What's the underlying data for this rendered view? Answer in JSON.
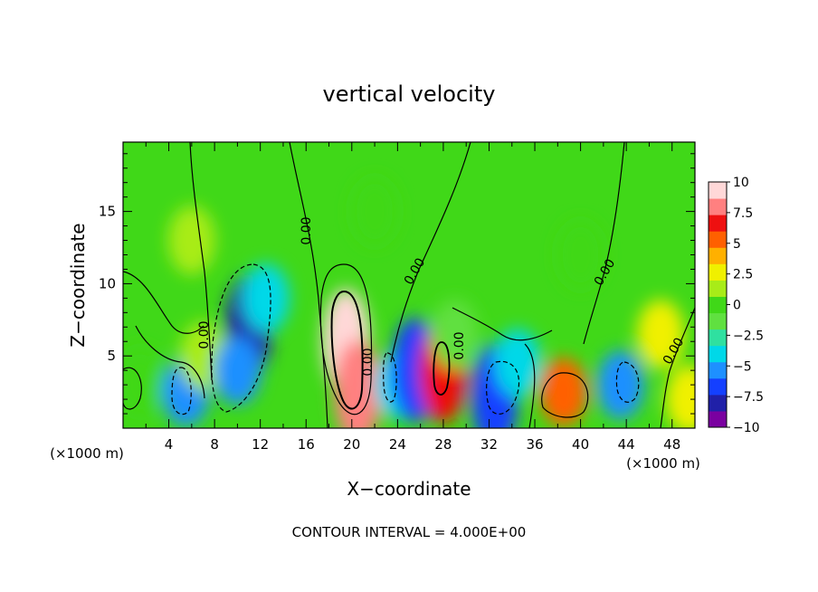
{
  "chart_data": {
    "type": "heatmap",
    "title": "vertical velocity",
    "xlabel": "X−coordinate",
    "ylabel": "Z−coordinate",
    "x_unit_left": "(×1000 m)",
    "x_unit_right": "(×1000 m)",
    "footer": "CONTOUR INTERVAL = 4.000E+00",
    "xlim": [
      0,
      50
    ],
    "ylim": [
      0,
      19.8
    ],
    "x_ticks": [
      4,
      8,
      12,
      16,
      20,
      24,
      28,
      32,
      36,
      40,
      44,
      48
    ],
    "y_ticks": [
      5,
      10,
      15
    ],
    "colorbar": {
      "range": [
        -10,
        10
      ],
      "ticks": [
        10,
        7.5,
        5,
        2.5,
        0,
        -2.5,
        -5,
        -7.5,
        -10
      ],
      "tick_labels": [
        "10",
        "7.5",
        "5",
        "2.5",
        "0",
        "−2.5",
        "−5",
        "−7.5",
        "−10"
      ],
      "colors": [
        "#7a00a0",
        "#2020a8",
        "#1440ff",
        "#1e90ff",
        "#00d8e8",
        "#2fe0a0",
        "#60e040",
        "#40d818",
        "#a8ec18",
        "#f0f000",
        "#ffb000",
        "#ff6000",
        "#ee1010",
        "#ff8080",
        "#ffd8d8"
      ]
    },
    "contour_labels": [
      "0.00",
      "0.00",
      "0.00",
      "0.00",
      "0.00",
      "0.00",
      "0.00"
    ],
    "cells": [
      {
        "x": 1.5,
        "z": 3.2,
        "w": 0
      },
      {
        "x": 5.5,
        "z": 2.5,
        "w": -5.5
      },
      {
        "x": 7.0,
        "z": 5.0,
        "w": 1.5
      },
      {
        "x": 11.0,
        "z": 7.0,
        "w": -7.5
      },
      {
        "x": 10.0,
        "z": 4.0,
        "w": -6.0
      },
      {
        "x": 12.5,
        "z": 9.0,
        "w": -4.0
      },
      {
        "x": 19.5,
        "z": 6.0,
        "w": 10.0
      },
      {
        "x": 20.5,
        "z": 2.5,
        "w": 8.0
      },
      {
        "x": 24.0,
        "z": 3.0,
        "w": -4.5
      },
      {
        "x": 25.5,
        "z": 4.0,
        "w": -6.5
      },
      {
        "x": 28.0,
        "z": 4.0,
        "w": 7.0
      },
      {
        "x": 29.0,
        "z": 6.5,
        "w": -2.0
      },
      {
        "x": 32.5,
        "z": 2.2,
        "w": -7.0
      },
      {
        "x": 34.5,
        "z": 4.5,
        "w": -4.0
      },
      {
        "x": 38.5,
        "z": 2.5,
        "w": 5.0
      },
      {
        "x": 43.5,
        "z": 3.0,
        "w": -5.0
      },
      {
        "x": 47.0,
        "z": 6.5,
        "w": 2.0
      },
      {
        "x": 49.5,
        "z": 2.0,
        "w": 3.0
      },
      {
        "x": 6.0,
        "z": 13.0,
        "w": 1.0
      },
      {
        "x": 22.0,
        "z": 15.0,
        "w": 0.5
      },
      {
        "x": 40.0,
        "z": 12.0,
        "w": -0.5
      }
    ]
  }
}
